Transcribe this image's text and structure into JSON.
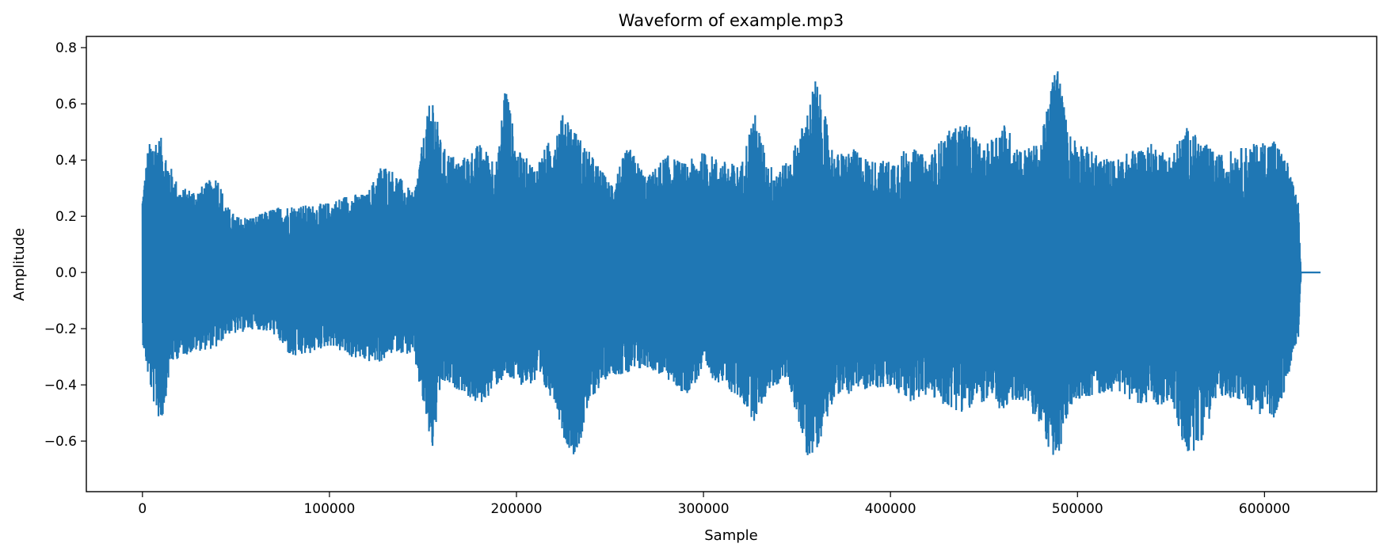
{
  "chart_data": {
    "type": "line",
    "title": "Waveform of example.mp3",
    "xlabel": "Sample",
    "ylabel": "Amplitude",
    "xlim": [
      -30000,
      660000
    ],
    "ylim": [
      -0.78,
      0.84
    ],
    "xticks": [
      0,
      100000,
      200000,
      300000,
      400000,
      500000,
      600000
    ],
    "xtick_labels": [
      "0",
      "100000",
      "200000",
      "300000",
      "400000",
      "500000",
      "600000"
    ],
    "yticks": [
      -0.6,
      -0.4,
      -0.2,
      0.0,
      0.2,
      0.4,
      0.6,
      0.8
    ],
    "ytick_labels": [
      "−0.6",
      "−0.4",
      "−0.2",
      "0.0",
      "0.2",
      "0.4",
      "0.6",
      "0.8"
    ],
    "grid": false,
    "series": [
      {
        "color": "#1f77b4",
        "envelope_x": [
          0,
          3000,
          6000,
          10000,
          15000,
          20000,
          30000,
          40000,
          45000,
          50000,
          60000,
          70000,
          80000,
          90000,
          100000,
          110000,
          120000,
          128000,
          135000,
          145000,
          152000,
          155000,
          160000,
          170000,
          180000,
          190000,
          194000,
          200000,
          210000,
          220000,
          226000,
          232000,
          240000,
          250000,
          260000,
          270000,
          280000,
          290000,
          300000,
          310000,
          320000,
          327000,
          335000,
          345000,
          355000,
          360000,
          370000,
          380000,
          390000,
          400000,
          410000,
          420000,
          430000,
          440000,
          450000,
          460000,
          470000,
          480000,
          489000,
          495000,
          500000,
          510000,
          520000,
          530000,
          540000,
          550000,
          558000,
          565000,
          575000,
          585000,
          595000,
          605000,
          612000,
          618000,
          619500,
          630000
        ],
        "upper": [
          0.28,
          0.45,
          0.49,
          0.48,
          0.38,
          0.3,
          0.3,
          0.35,
          0.24,
          0.2,
          0.2,
          0.23,
          0.24,
          0.24,
          0.25,
          0.28,
          0.28,
          0.39,
          0.36,
          0.28,
          0.55,
          0.65,
          0.45,
          0.4,
          0.46,
          0.4,
          0.7,
          0.44,
          0.38,
          0.5,
          0.58,
          0.5,
          0.42,
          0.32,
          0.45,
          0.34,
          0.42,
          0.39,
          0.43,
          0.4,
          0.38,
          0.58,
          0.38,
          0.39,
          0.56,
          0.7,
          0.42,
          0.44,
          0.4,
          0.4,
          0.45,
          0.41,
          0.5,
          0.54,
          0.44,
          0.54,
          0.44,
          0.46,
          0.77,
          0.5,
          0.48,
          0.42,
          0.4,
          0.44,
          0.46,
          0.42,
          0.52,
          0.48,
          0.42,
          0.44,
          0.46,
          0.48,
          0.4,
          0.25,
          0.0,
          0.0
        ],
        "lower": [
          -0.25,
          -0.38,
          -0.47,
          -0.55,
          -0.33,
          -0.3,
          -0.28,
          -0.27,
          -0.22,
          -0.22,
          -0.2,
          -0.22,
          -0.31,
          -0.29,
          -0.26,
          -0.3,
          -0.32,
          -0.32,
          -0.28,
          -0.3,
          -0.55,
          -0.64,
          -0.4,
          -0.42,
          -0.48,
          -0.4,
          -0.38,
          -0.4,
          -0.4,
          -0.45,
          -0.61,
          -0.66,
          -0.45,
          -0.36,
          -0.37,
          -0.34,
          -0.38,
          -0.44,
          -0.36,
          -0.4,
          -0.46,
          -0.53,
          -0.42,
          -0.38,
          -0.66,
          -0.64,
          -0.44,
          -0.43,
          -0.41,
          -0.42,
          -0.46,
          -0.44,
          -0.48,
          -0.5,
          -0.46,
          -0.5,
          -0.45,
          -0.55,
          -0.7,
          -0.5,
          -0.45,
          -0.44,
          -0.42,
          -0.46,
          -0.48,
          -0.46,
          -0.66,
          -0.62,
          -0.44,
          -0.45,
          -0.5,
          -0.52,
          -0.4,
          -0.23,
          0.0,
          0.0
        ]
      }
    ]
  }
}
